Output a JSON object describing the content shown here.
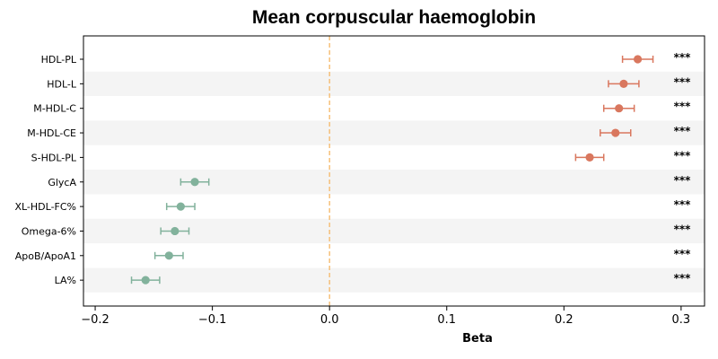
{
  "chart_data": {
    "type": "scatter",
    "title": "Mean corpuscular haemoglobin",
    "xlabel": "Beta",
    "ylabel": "",
    "xlim": [
      -0.21,
      0.32
    ],
    "xticks": [
      -0.2,
      -0.1,
      0.0,
      0.1,
      0.2,
      0.3
    ],
    "xtick_labels": [
      "−0.2",
      "−0.1",
      "0.0",
      "0.1",
      "0.2",
      "0.3"
    ],
    "reference_line": 0.0,
    "grid": false,
    "colors": {
      "positive": "#d9775e",
      "negative": "#82b29c",
      "reference": "#f5c07a",
      "band": "#f4f4f4"
    },
    "points": [
      {
        "label": "HDL-PL",
        "beta": 0.263,
        "ci_low": 0.25,
        "ci_high": 0.276,
        "sig": "***"
      },
      {
        "label": "HDL-L",
        "beta": 0.251,
        "ci_low": 0.238,
        "ci_high": 0.264,
        "sig": "***"
      },
      {
        "label": "M-HDL-C",
        "beta": 0.247,
        "ci_low": 0.234,
        "ci_high": 0.26,
        "sig": "***"
      },
      {
        "label": "M-HDL-CE",
        "beta": 0.244,
        "ci_low": 0.231,
        "ci_high": 0.257,
        "sig": "***"
      },
      {
        "label": "S-HDL-PL",
        "beta": 0.222,
        "ci_low": 0.21,
        "ci_high": 0.234,
        "sig": "***"
      },
      {
        "label": "GlycA",
        "beta": -0.115,
        "ci_low": -0.127,
        "ci_high": -0.103,
        "sig": "***"
      },
      {
        "label": "XL-HDL-FC%",
        "beta": -0.127,
        "ci_low": -0.139,
        "ci_high": -0.115,
        "sig": "***"
      },
      {
        "label": "Omega-6%",
        "beta": -0.132,
        "ci_low": -0.144,
        "ci_high": -0.12,
        "sig": "***"
      },
      {
        "label": "ApoB/ApoA1",
        "beta": -0.137,
        "ci_low": -0.149,
        "ci_high": -0.125,
        "sig": "***"
      },
      {
        "label": "LA%",
        "beta": -0.157,
        "ci_low": -0.169,
        "ci_high": -0.145,
        "sig": "***"
      }
    ]
  }
}
